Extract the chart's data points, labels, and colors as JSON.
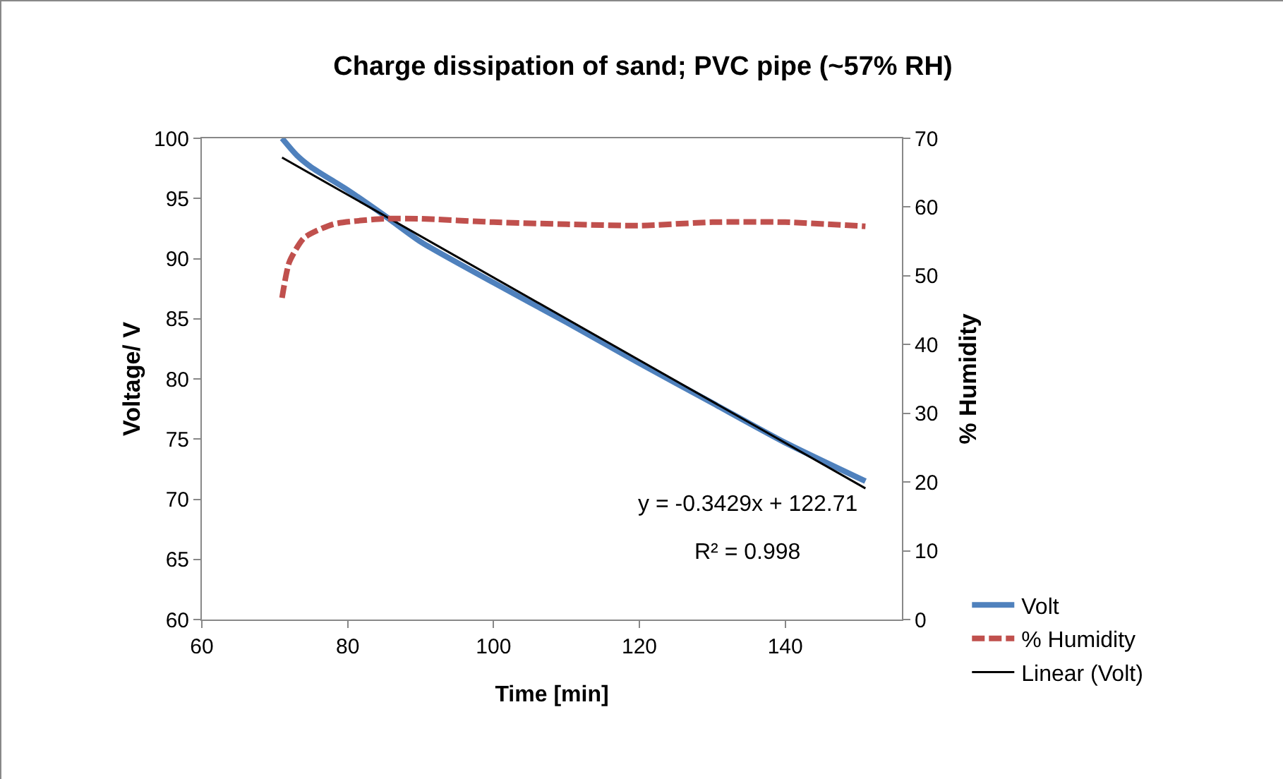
{
  "chart_data": {
    "type": "line",
    "title": "Charge dissipation of sand; PVC pipe (~57% RH)",
    "xlabel": "Time [min]",
    "ylabel": "Voltage/ V",
    "y2label": "% Humidity",
    "xlim": [
      60,
      156
    ],
    "xticks": [
      60,
      80,
      100,
      120,
      140
    ],
    "ylim": [
      60,
      100
    ],
    "yticks": [
      60,
      65,
      70,
      75,
      80,
      85,
      90,
      95,
      100
    ],
    "y2lim": [
      0,
      70
    ],
    "y2ticks": [
      0,
      10,
      20,
      30,
      40,
      50,
      60,
      70
    ],
    "grid": false,
    "legend": "bottom right",
    "line_style": "solid",
    "marker": "none",
    "annotations": [
      "y = -0.3429x + 122.71",
      "R² = 0.998"
    ],
    "series": [
      {
        "name": "Volt",
        "color": "#4f81bd",
        "x": [
          71,
          73,
          75,
          80,
          85,
          90,
          100,
          110,
          120,
          130,
          140,
          151
        ],
        "values": [
          100,
          98.6,
          97.6,
          95.7,
          93.6,
          91.4,
          88.0,
          84.7,
          81.3,
          78.0,
          74.7,
          71.5
        ]
      },
      {
        "name": "% Humidity",
        "color": "#c0504d",
        "axis": "y2",
        "line_style": "dashed",
        "x": [
          71,
          72,
          74,
          78,
          85,
          90,
          100,
          110,
          120,
          130,
          140,
          151
        ],
        "values": [
          46.8,
          52,
          55.5,
          57.5,
          58.3,
          58.3,
          57.8,
          57.5,
          57.3,
          57.8,
          57.8,
          57.2
        ]
      },
      {
        "name": "Linear (Volt)",
        "color": "#000000",
        "x": [
          71,
          151
        ],
        "values": [
          98.4,
          70.9
        ]
      }
    ]
  }
}
